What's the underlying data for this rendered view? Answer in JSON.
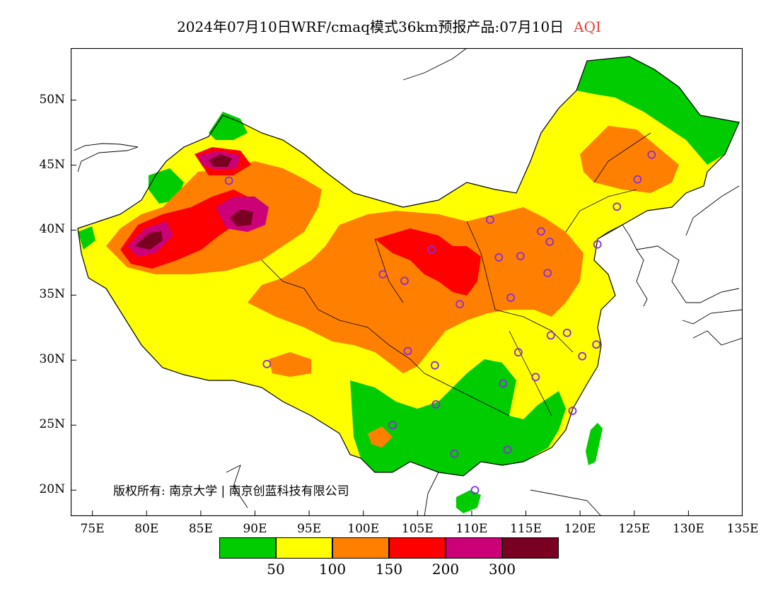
{
  "title": {
    "text": "2024年07月10日WRF/cmaq模式36km预报产品:07月10日",
    "variable": "AQI",
    "variable_color": "#e8403c"
  },
  "axes": {
    "lat_labels": [
      "50N",
      "45N",
      "40N",
      "35N",
      "30N",
      "25N",
      "20N"
    ],
    "lat_values": [
      50,
      45,
      40,
      35,
      30,
      25,
      20
    ],
    "lon_labels": [
      "75E",
      "80E",
      "85E",
      "90E",
      "95E",
      "100E",
      "105E",
      "110E",
      "115E",
      "120E",
      "125E",
      "130E",
      "135E"
    ],
    "lon_values": [
      75,
      80,
      85,
      90,
      95,
      100,
      105,
      110,
      115,
      120,
      125,
      130,
      135
    ],
    "lon_range": [
      73,
      135
    ],
    "lat_range": [
      18,
      54
    ]
  },
  "legend": {
    "colors": [
      "#00cc00",
      "#ffff00",
      "#ff8000",
      "#ff0000",
      "#cc0077",
      "#7a0022"
    ],
    "labels": [
      "50",
      "100",
      "150",
      "200",
      "300"
    ]
  },
  "copyright": "版权所有: 南京大学 | 南京创蓝科技有限公司",
  "stations": [
    [
      126.6,
      45.8
    ],
    [
      125.3,
      43.9
    ],
    [
      123.4,
      41.8
    ],
    [
      121.6,
      38.9
    ],
    [
      117.2,
      39.1
    ],
    [
      116.4,
      39.9
    ],
    [
      114.5,
      38.0
    ],
    [
      112.5,
      37.9
    ],
    [
      111.7,
      40.8
    ],
    [
      117.0,
      36.7
    ],
    [
      113.6,
      34.8
    ],
    [
      108.9,
      34.3
    ],
    [
      103.8,
      36.1
    ],
    [
      101.8,
      36.6
    ],
    [
      106.3,
      38.5
    ],
    [
      118.8,
      32.1
    ],
    [
      117.3,
      31.9
    ],
    [
      120.2,
      30.3
    ],
    [
      121.5,
      31.2
    ],
    [
      115.9,
      28.7
    ],
    [
      114.3,
      30.6
    ],
    [
      112.9,
      28.2
    ],
    [
      106.6,
      29.6
    ],
    [
      104.1,
      30.7
    ],
    [
      106.7,
      26.6
    ],
    [
      102.7,
      25.0
    ],
    [
      108.4,
      22.8
    ],
    [
      113.3,
      23.1
    ],
    [
      119.3,
      26.1
    ],
    [
      110.3,
      20.0
    ],
    [
      91.1,
      29.7
    ],
    [
      87.6,
      43.8
    ]
  ]
}
